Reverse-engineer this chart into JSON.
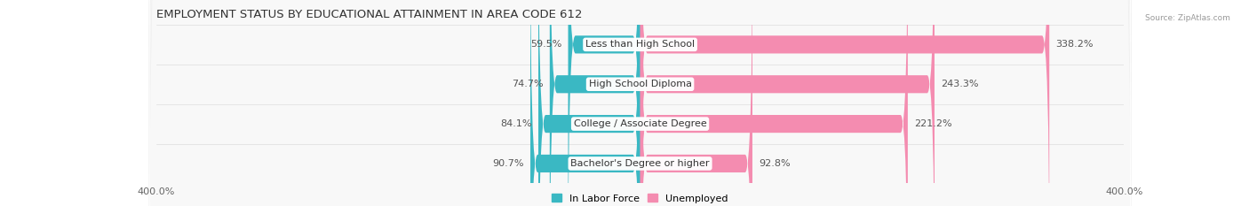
{
  "title": "EMPLOYMENT STATUS BY EDUCATIONAL ATTAINMENT IN AREA CODE 612",
  "source": "Source: ZipAtlas.com",
  "categories": [
    "Less than High School",
    "High School Diploma",
    "College / Associate Degree",
    "Bachelor's Degree or higher"
  ],
  "labor_force_values": [
    59.5,
    74.7,
    84.1,
    90.7
  ],
  "unemployed_values": [
    338.2,
    243.3,
    221.2,
    92.8
  ],
  "labor_force_color": "#3ab8c3",
  "unemployed_color": "#f48cb0",
  "row_bg_color_odd": "#efefef",
  "row_bg_color_even": "#f8f8f8",
  "axis_min": -400.0,
  "axis_max": 400.0,
  "legend_labor": "In Labor Force",
  "legend_unemployed": "Unemployed",
  "title_fontsize": 9.5,
  "label_fontsize": 8,
  "tick_fontsize": 8,
  "value_fontsize": 8
}
